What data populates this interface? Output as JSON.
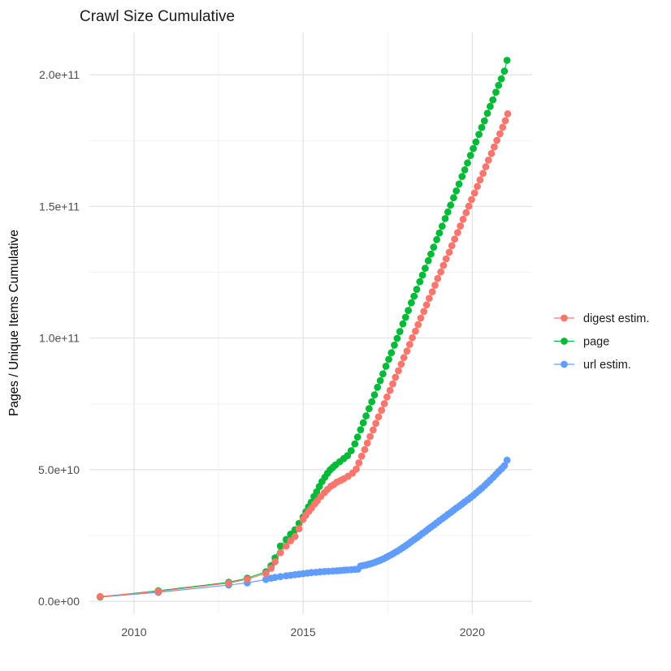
{
  "chart_data": {
    "type": "scatter",
    "title": "Crawl Size Cumulative",
    "xlabel": "",
    "ylabel": "Pages / Unique Items Cumulative",
    "grid": true,
    "legend_position": "right",
    "value_unit": "items (y values stored in billions, 1e9)",
    "xlim": [
      2008.68,
      2021.77
    ],
    "ylim_e9": [
      -4.9,
      216.1
    ],
    "x_ticks": [
      {
        "value": 2010,
        "label": "2010"
      },
      {
        "value": 2015,
        "label": "2015"
      },
      {
        "value": 2020,
        "label": "2020"
      }
    ],
    "x_minor": [
      2012.5,
      2017.5
    ],
    "y_ticks": [
      {
        "value_e9": 0,
        "label": "0.0e+00"
      },
      {
        "value_e9": 50,
        "label": "5.0e+10"
      },
      {
        "value_e9": 100,
        "label": "1.0e+11"
      },
      {
        "value_e9": 150,
        "label": "1.5e+11"
      },
      {
        "value_e9": 200,
        "label": "2.0e+11"
      }
    ],
    "y_minor_e9": [
      25,
      75,
      125,
      175
    ],
    "series": [
      {
        "name": "digest estim.",
        "color": "#F8766D",
        "points": [
          [
            2009.0,
            1.8
          ],
          [
            2010.72,
            3.8
          ],
          [
            2012.8,
            6.9
          ],
          [
            2013.35,
            8.4
          ],
          [
            2013.9,
            10.6
          ],
          [
            2014.05,
            12.5
          ],
          [
            2014.17,
            15.0
          ],
          [
            2014.33,
            18.5
          ],
          [
            2014.5,
            21.0
          ],
          [
            2014.63,
            23.0
          ],
          [
            2014.76,
            24.6
          ],
          [
            2014.88,
            27.6
          ],
          [
            2015.0,
            31.1
          ],
          [
            2015.08,
            32.7
          ],
          [
            2015.17,
            34.2
          ],
          [
            2015.25,
            35.4
          ],
          [
            2015.34,
            37.0
          ],
          [
            2015.42,
            38.2
          ],
          [
            2015.52,
            39.8
          ],
          [
            2015.63,
            41.3
          ],
          [
            2015.72,
            42.5
          ],
          [
            2015.82,
            43.7
          ],
          [
            2015.91,
            44.4
          ],
          [
            2016.0,
            45.3
          ],
          [
            2016.11,
            45.9
          ],
          [
            2016.2,
            46.5
          ],
          [
            2016.33,
            47.5
          ],
          [
            2016.46,
            48.7
          ],
          [
            2016.57,
            50.2
          ],
          [
            2016.65,
            52.6
          ],
          [
            2016.73,
            55.1
          ],
          [
            2016.82,
            57.6
          ],
          [
            2016.9,
            60.1
          ],
          [
            2016.98,
            62.6
          ],
          [
            2017.07,
            65.1
          ],
          [
            2017.15,
            67.6
          ],
          [
            2017.23,
            70.1
          ],
          [
            2017.32,
            72.6
          ],
          [
            2017.4,
            75.1
          ],
          [
            2017.48,
            77.6
          ],
          [
            2017.57,
            80.1
          ],
          [
            2017.65,
            82.6
          ],
          [
            2017.73,
            85.1
          ],
          [
            2017.82,
            87.6
          ],
          [
            2017.9,
            90.1
          ],
          [
            2017.98,
            92.6
          ],
          [
            2018.07,
            95.1
          ],
          [
            2018.15,
            97.6
          ],
          [
            2018.23,
            100.1
          ],
          [
            2018.32,
            102.6
          ],
          [
            2018.4,
            105.1
          ],
          [
            2018.48,
            107.6
          ],
          [
            2018.57,
            110.1
          ],
          [
            2018.65,
            112.6
          ],
          [
            2018.73,
            115.1
          ],
          [
            2018.82,
            117.6
          ],
          [
            2018.9,
            120.1
          ],
          [
            2018.98,
            122.6
          ],
          [
            2019.07,
            125.1
          ],
          [
            2019.15,
            127.6
          ],
          [
            2019.23,
            130.1
          ],
          [
            2019.32,
            132.6
          ],
          [
            2019.4,
            135.1
          ],
          [
            2019.48,
            137.6
          ],
          [
            2019.57,
            140.1
          ],
          [
            2019.65,
            142.6
          ],
          [
            2019.73,
            145.1
          ],
          [
            2019.82,
            147.6
          ],
          [
            2019.9,
            150.1
          ],
          [
            2019.98,
            152.6
          ],
          [
            2020.07,
            155.1
          ],
          [
            2020.15,
            157.6
          ],
          [
            2020.23,
            160.1
          ],
          [
            2020.32,
            162.6
          ],
          [
            2020.4,
            165.1
          ],
          [
            2020.48,
            167.6
          ],
          [
            2020.57,
            170.1
          ],
          [
            2020.65,
            172.6
          ],
          [
            2020.73,
            175.1
          ],
          [
            2020.82,
            177.6
          ],
          [
            2020.9,
            180.1
          ],
          [
            2020.98,
            182.6
          ],
          [
            2021.05,
            185.2
          ]
        ]
      },
      {
        "name": "page",
        "color": "#00BA38",
        "points": [
          [
            2009.0,
            1.7
          ],
          [
            2010.72,
            4.0
          ],
          [
            2012.8,
            7.2
          ],
          [
            2013.35,
            8.8
          ],
          [
            2013.9,
            11.2
          ],
          [
            2014.05,
            13.5
          ],
          [
            2014.17,
            16.5
          ],
          [
            2014.33,
            21.0
          ],
          [
            2014.5,
            23.5
          ],
          [
            2014.63,
            25.5
          ],
          [
            2014.76,
            27.2
          ],
          [
            2014.88,
            29.6
          ],
          [
            2015.0,
            32.0
          ],
          [
            2015.08,
            34.0
          ],
          [
            2015.16,
            35.9
          ],
          [
            2015.24,
            37.6
          ],
          [
            2015.32,
            39.8
          ],
          [
            2015.4,
            41.6
          ],
          [
            2015.48,
            43.6
          ],
          [
            2015.56,
            45.5
          ],
          [
            2015.64,
            47.1
          ],
          [
            2015.72,
            48.6
          ],
          [
            2015.8,
            49.9
          ],
          [
            2015.88,
            50.9
          ],
          [
            2015.96,
            51.8
          ],
          [
            2016.08,
            53.0
          ],
          [
            2016.2,
            54.2
          ],
          [
            2016.31,
            55.3
          ],
          [
            2016.42,
            57.2
          ],
          [
            2016.53,
            59.8
          ],
          [
            2016.61,
            62.4
          ],
          [
            2016.7,
            65.2
          ],
          [
            2016.78,
            67.8
          ],
          [
            2016.86,
            70.4
          ],
          [
            2016.95,
            73.2
          ],
          [
            2017.03,
            75.8
          ],
          [
            2017.11,
            78.4
          ],
          [
            2017.2,
            81.3
          ],
          [
            2017.28,
            83.8
          ],
          [
            2017.36,
            86.4
          ],
          [
            2017.45,
            89.3
          ],
          [
            2017.53,
            91.9
          ],
          [
            2017.61,
            94.4
          ],
          [
            2017.7,
            97.3
          ],
          [
            2017.78,
            99.9
          ],
          [
            2017.86,
            102.5
          ],
          [
            2017.95,
            105.4
          ],
          [
            2018.03,
            107.9
          ],
          [
            2018.11,
            110.5
          ],
          [
            2018.2,
            113.4
          ],
          [
            2018.28,
            115.9
          ],
          [
            2018.36,
            118.5
          ],
          [
            2018.45,
            121.4
          ],
          [
            2018.53,
            123.9
          ],
          [
            2018.61,
            126.5
          ],
          [
            2018.7,
            129.4
          ],
          [
            2018.78,
            131.9
          ],
          [
            2018.86,
            134.5
          ],
          [
            2018.95,
            137.4
          ],
          [
            2019.03,
            139.9
          ],
          [
            2019.11,
            142.5
          ],
          [
            2019.2,
            145.4
          ],
          [
            2019.28,
            147.9
          ],
          [
            2019.36,
            150.5
          ],
          [
            2019.45,
            153.3
          ],
          [
            2019.53,
            155.9
          ],
          [
            2019.61,
            158.5
          ],
          [
            2019.7,
            161.4
          ],
          [
            2019.78,
            163.9
          ],
          [
            2019.86,
            166.5
          ],
          [
            2019.95,
            169.4
          ],
          [
            2020.03,
            172.0
          ],
          [
            2020.11,
            174.5
          ],
          [
            2020.2,
            177.4
          ],
          [
            2020.28,
            180.0
          ],
          [
            2020.36,
            182.5
          ],
          [
            2020.45,
            185.4
          ],
          [
            2020.53,
            188.0
          ],
          [
            2020.61,
            190.5
          ],
          [
            2020.7,
            193.4
          ],
          [
            2020.78,
            196.0
          ],
          [
            2020.86,
            198.5
          ],
          [
            2020.95,
            201.4
          ],
          [
            2021.03,
            205.5
          ]
        ]
      },
      {
        "name": "url estim.",
        "color": "#619CFF",
        "points": [
          [
            2009.0,
            1.6
          ],
          [
            2010.72,
            3.4
          ],
          [
            2012.8,
            6.2
          ],
          [
            2013.35,
            7.0
          ],
          [
            2013.9,
            8.3
          ],
          [
            2014.05,
            8.8
          ],
          [
            2014.17,
            9.1
          ],
          [
            2014.33,
            9.4
          ],
          [
            2014.5,
            9.7
          ],
          [
            2014.63,
            9.9
          ],
          [
            2014.76,
            10.1
          ],
          [
            2014.88,
            10.3
          ],
          [
            2015.0,
            10.5
          ],
          [
            2015.13,
            10.7
          ],
          [
            2015.25,
            10.9
          ],
          [
            2015.38,
            11.0
          ],
          [
            2015.5,
            11.2
          ],
          [
            2015.63,
            11.3
          ],
          [
            2015.75,
            11.4
          ],
          [
            2015.88,
            11.5
          ],
          [
            2016.0,
            11.6
          ],
          [
            2016.1,
            11.7
          ],
          [
            2016.2,
            11.8
          ],
          [
            2016.3,
            11.9
          ],
          [
            2016.42,
            12.0
          ],
          [
            2016.53,
            12.1
          ],
          [
            2016.62,
            12.2
          ],
          [
            2016.7,
            13.4
          ],
          [
            2016.78,
            13.6
          ],
          [
            2016.87,
            13.8
          ],
          [
            2016.95,
            14.1
          ],
          [
            2017.03,
            14.4
          ],
          [
            2017.12,
            14.8
          ],
          [
            2017.2,
            15.2
          ],
          [
            2017.28,
            15.6
          ],
          [
            2017.37,
            16.1
          ],
          [
            2017.45,
            16.6
          ],
          [
            2017.53,
            17.2
          ],
          [
            2017.62,
            17.8
          ],
          [
            2017.7,
            18.4
          ],
          [
            2017.78,
            19.0
          ],
          [
            2017.87,
            19.7
          ],
          [
            2017.95,
            20.4
          ],
          [
            2018.03,
            21.1
          ],
          [
            2018.12,
            21.9
          ],
          [
            2018.2,
            22.7
          ],
          [
            2018.28,
            23.4
          ],
          [
            2018.37,
            24.2
          ],
          [
            2018.45,
            25.0
          ],
          [
            2018.53,
            25.8
          ],
          [
            2018.62,
            26.6
          ],
          [
            2018.7,
            27.4
          ],
          [
            2018.78,
            28.2
          ],
          [
            2018.87,
            29.0
          ],
          [
            2018.95,
            29.8
          ],
          [
            2019.03,
            30.6
          ],
          [
            2019.12,
            31.4
          ],
          [
            2019.2,
            32.2
          ],
          [
            2019.28,
            33.0
          ],
          [
            2019.37,
            33.8
          ],
          [
            2019.45,
            34.6
          ],
          [
            2019.53,
            35.4
          ],
          [
            2019.62,
            36.2
          ],
          [
            2019.7,
            37.0
          ],
          [
            2019.78,
            37.8
          ],
          [
            2019.87,
            38.6
          ],
          [
            2019.95,
            39.4
          ],
          [
            2020.03,
            40.2
          ],
          [
            2020.12,
            41.2
          ],
          [
            2020.2,
            42.1
          ],
          [
            2020.28,
            43.0
          ],
          [
            2020.37,
            44.0
          ],
          [
            2020.45,
            45.0
          ],
          [
            2020.53,
            46.0
          ],
          [
            2020.62,
            47.1
          ],
          [
            2020.7,
            48.2
          ],
          [
            2020.78,
            49.3
          ],
          [
            2020.87,
            50.4
          ],
          [
            2020.95,
            51.5
          ],
          [
            2021.03,
            53.6
          ]
        ]
      }
    ]
  },
  "legend": {
    "items": [
      {
        "label": "digest estim.",
        "color": "#F8766D"
      },
      {
        "label": "page",
        "color": "#00BA38"
      },
      {
        "label": "url estim.",
        "color": "#619CFF"
      }
    ]
  },
  "theme": {
    "background": "#FFFFFF",
    "grid_major": "#E2E2E2",
    "grid_minor": "#F0F0F0",
    "tick_label_color": "#4D4D4D",
    "title_color": "#1A1A1A",
    "text_color": "#000000"
  }
}
